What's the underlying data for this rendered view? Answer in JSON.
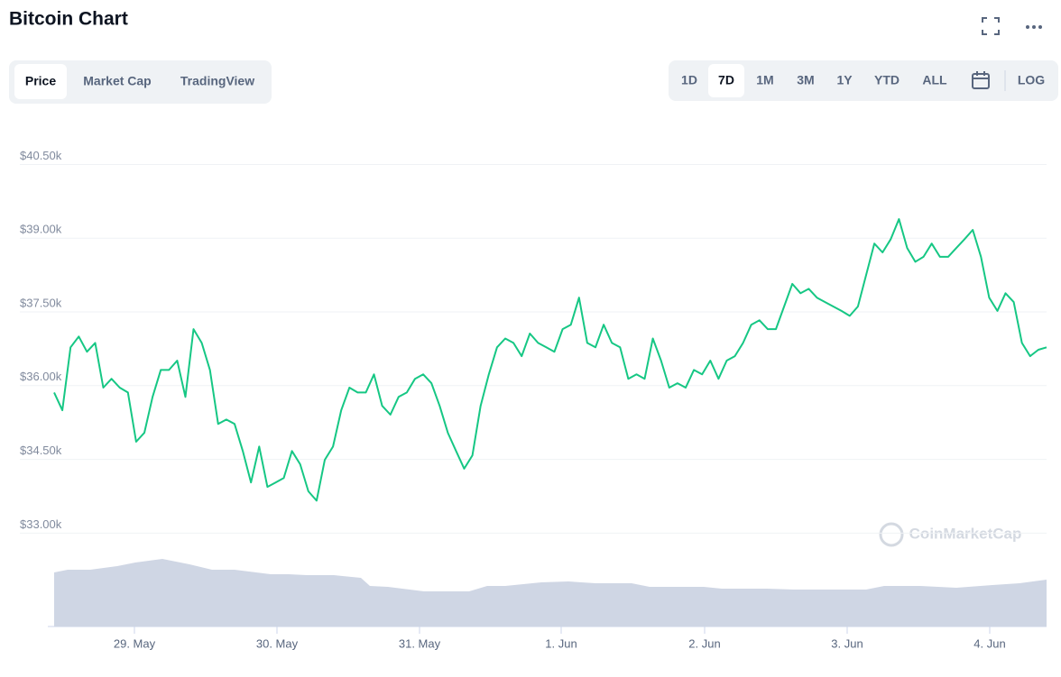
{
  "header": {
    "title": "Bitcoin Chart"
  },
  "tabs": [
    "Price",
    "Market Cap",
    "TradingView"
  ],
  "active_tab": 0,
  "ranges": [
    "1D",
    "7D",
    "1M",
    "3M",
    "1Y",
    "YTD",
    "ALL"
  ],
  "active_range": 1,
  "scale_toggle": "LOG",
  "watermark": "CoinMarketCap",
  "chart_data": {
    "type": "line",
    "x_labels": [
      "29. May",
      "30. May",
      "31. May",
      "1. Jun",
      "2. Jun",
      "3. Jun",
      "4. Jun"
    ],
    "ylim": [
      32750,
      41150
    ],
    "yticks": [
      {
        "value": 33000,
        "label": "$33.00k"
      },
      {
        "value": 34500,
        "label": "$34.50k"
      },
      {
        "value": 36000,
        "label": "$36.00k"
      },
      {
        "value": 37500,
        "label": "$37.50k"
      },
      {
        "value": 39000,
        "label": "$39.00k"
      },
      {
        "value": 40500,
        "label": "$40.50k"
      }
    ],
    "grid": true,
    "series": [
      {
        "name": "Price",
        "color": "#16c784",
        "values": [
          35860,
          35500,
          36780,
          37000,
          36690,
          36870,
          35960,
          36140,
          35960,
          35860,
          34860,
          35040,
          35770,
          36320,
          36320,
          36510,
          35770,
          37150,
          36870,
          36320,
          35220,
          35310,
          35220,
          34670,
          34030,
          34760,
          33940,
          34030,
          34120,
          34670,
          34400,
          33850,
          33660,
          34490,
          34760,
          35500,
          35960,
          35860,
          35860,
          36230,
          35590,
          35410,
          35770,
          35860,
          36140,
          36230,
          36050,
          35590,
          35040,
          34670,
          34310,
          34580,
          35590,
          36230,
          36780,
          36960,
          36870,
          36600,
          37060,
          36870,
          36780,
          36690,
          37150,
          37240,
          37790,
          36870,
          36780,
          37240,
          36870,
          36780,
          36140,
          36230,
          36140,
          36960,
          36510,
          35960,
          36050,
          35960,
          36320,
          36230,
          36510,
          36140,
          36510,
          36600,
          36870,
          37240,
          37330,
          37150,
          37150,
          37610,
          38070,
          37880,
          37970,
          37790,
          37700,
          37610,
          37520,
          37420,
          37610,
          38250,
          38890,
          38710,
          38980,
          39390,
          38800,
          38520,
          38620,
          38890,
          38620,
          38620,
          38800,
          38980,
          39170,
          38620,
          37790,
          37520,
          37880,
          37700,
          36870,
          36600,
          36730,
          36780
        ]
      }
    ]
  }
}
